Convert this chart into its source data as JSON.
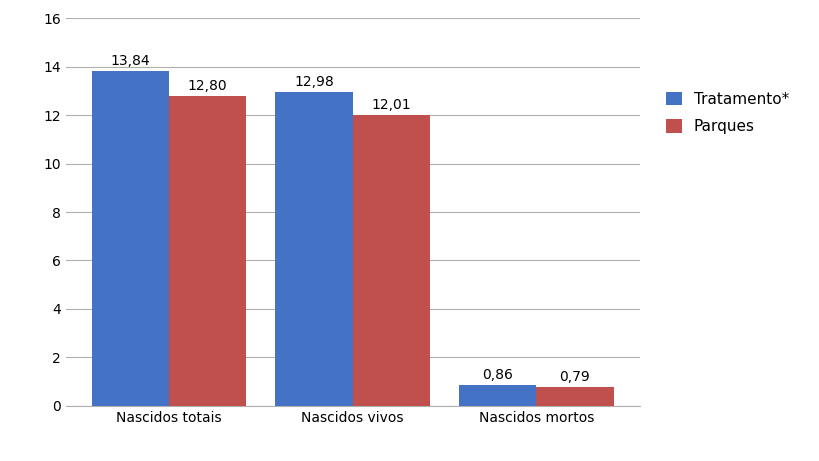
{
  "categories": [
    "Nascidos totais",
    "Nascidos vivos",
    "Nascidos mortos"
  ],
  "tratamento_values": [
    13.84,
    12.98,
    0.86
  ],
  "parques_values": [
    12.8,
    12.01,
    0.79
  ],
  "tratamento_color": "#4472C4",
  "parques_color": "#C0504D",
  "tratamento_label": "Tratamento*",
  "parques_label": "Parques",
  "ylim": [
    0,
    16
  ],
  "yticks": [
    0,
    2,
    4,
    6,
    8,
    10,
    12,
    14,
    16
  ],
  "bar_width": 0.42,
  "label_fontsize": 10,
  "tick_fontsize": 10,
  "legend_fontsize": 11,
  "background_color": "#ffffff",
  "grid_color": "#b0b0b0"
}
